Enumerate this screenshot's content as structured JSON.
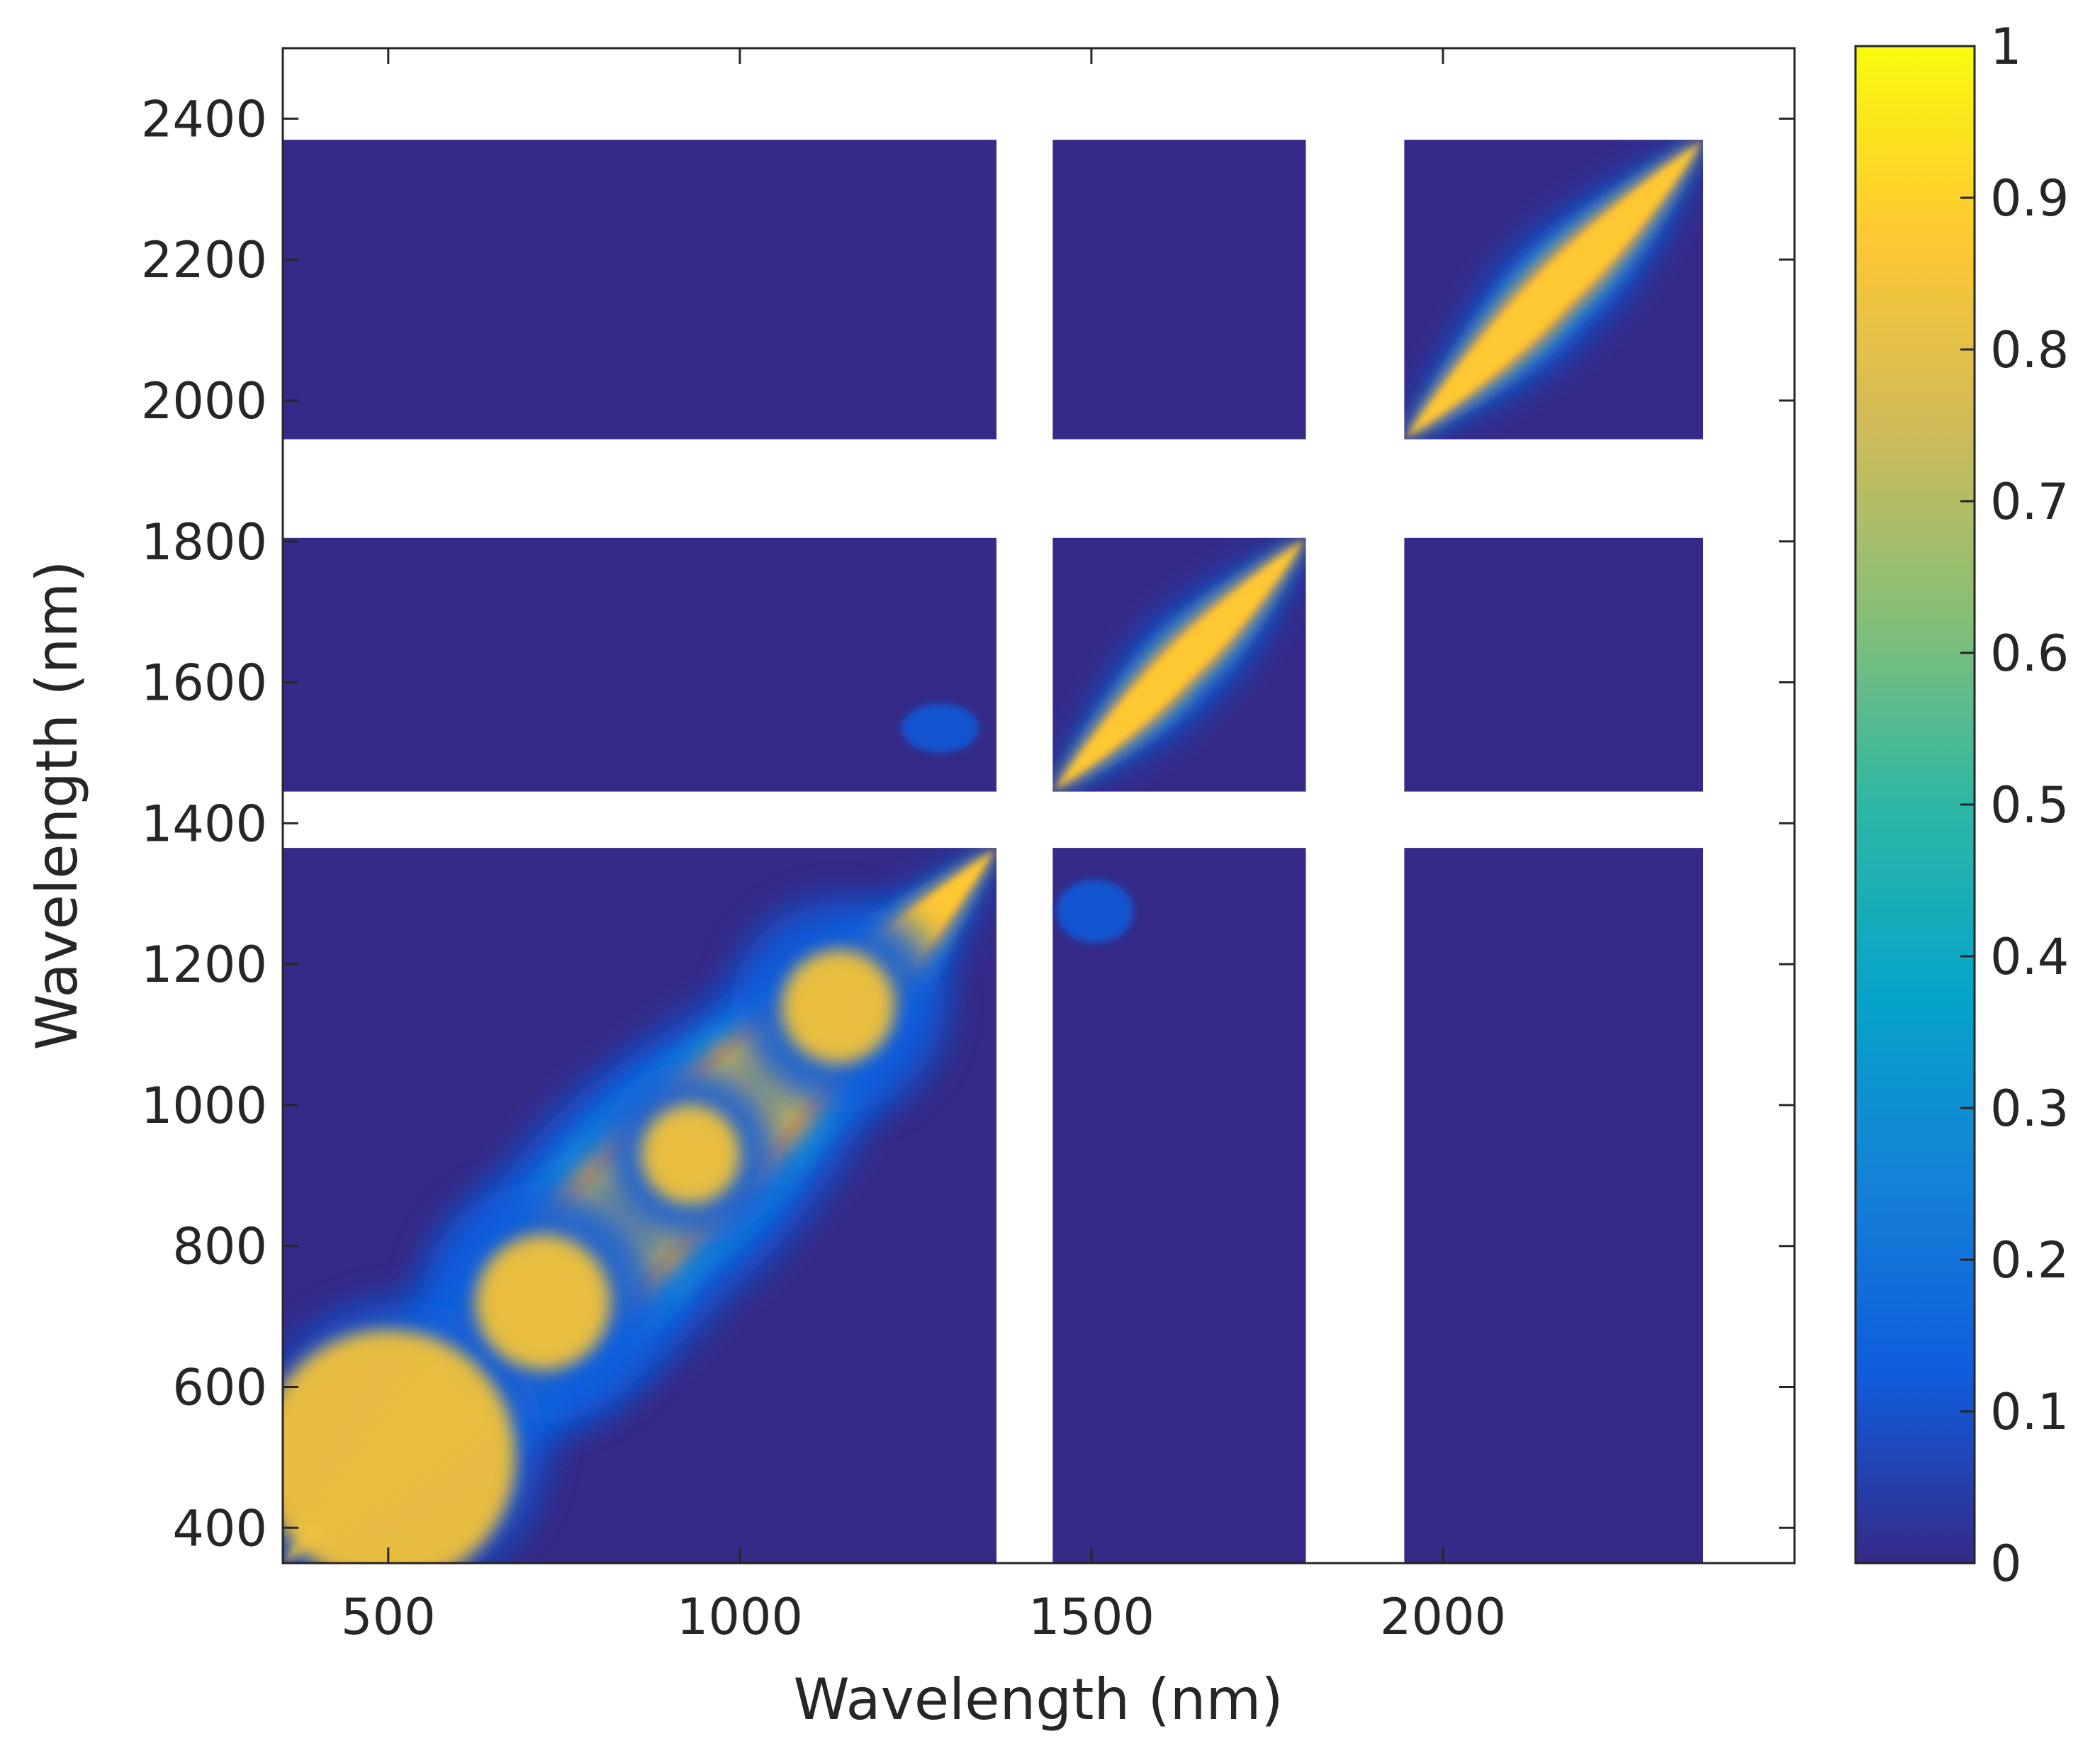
{
  "chart_data": {
    "type": "heatmap",
    "title": "",
    "xlabel": "Wavelength (nm)",
    "ylabel": "Wavelength (nm)",
    "xlim": [
      350,
      2500
    ],
    "ylim": [
      350,
      2500
    ],
    "x_ticks": [
      500,
      1000,
      1500,
      2000
    ],
    "y_ticks": [
      400,
      600,
      800,
      1000,
      1200,
      1400,
      1600,
      1800,
      2000,
      2200,
      2400
    ],
    "value_range": [
      0,
      1
    ],
    "colorbar_ticks": [
      0,
      0.1,
      0.2,
      0.3,
      0.4,
      0.5,
      0.6,
      0.7,
      0.8,
      0.9,
      1
    ],
    "colormap": "parula",
    "colorbar_colors": [
      "#352a87",
      "#0f5cdd",
      "#1481d6",
      "#06a4ca",
      "#2eb7a4",
      "#87bf77",
      "#d1bb59",
      "#fec832",
      "#f9fb0e"
    ],
    "blank_bands_nm": [
      [
        1365,
        1445
      ],
      [
        1805,
        1945
      ],
      [
        2370,
        2380
      ],
      [
        2390,
        2500
      ]
    ],
    "valid_bands_nm": [
      [
        350,
        1365
      ],
      [
        1445,
        1805
      ],
      [
        1945,
        2370
      ]
    ],
    "notes_data": {
      "diagonal_value": 1,
      "off_diagonal_baseline": 0,
      "local_correlation_spots": [
        {
          "x": [
            1230,
            1340
          ],
          "y": [
            1500,
            1570
          ],
          "value": 0.15
        },
        {
          "x": [
            1450,
            1560
          ],
          "y": [
            1230,
            1320
          ],
          "value": 0.15
        }
      ]
    }
  }
}
